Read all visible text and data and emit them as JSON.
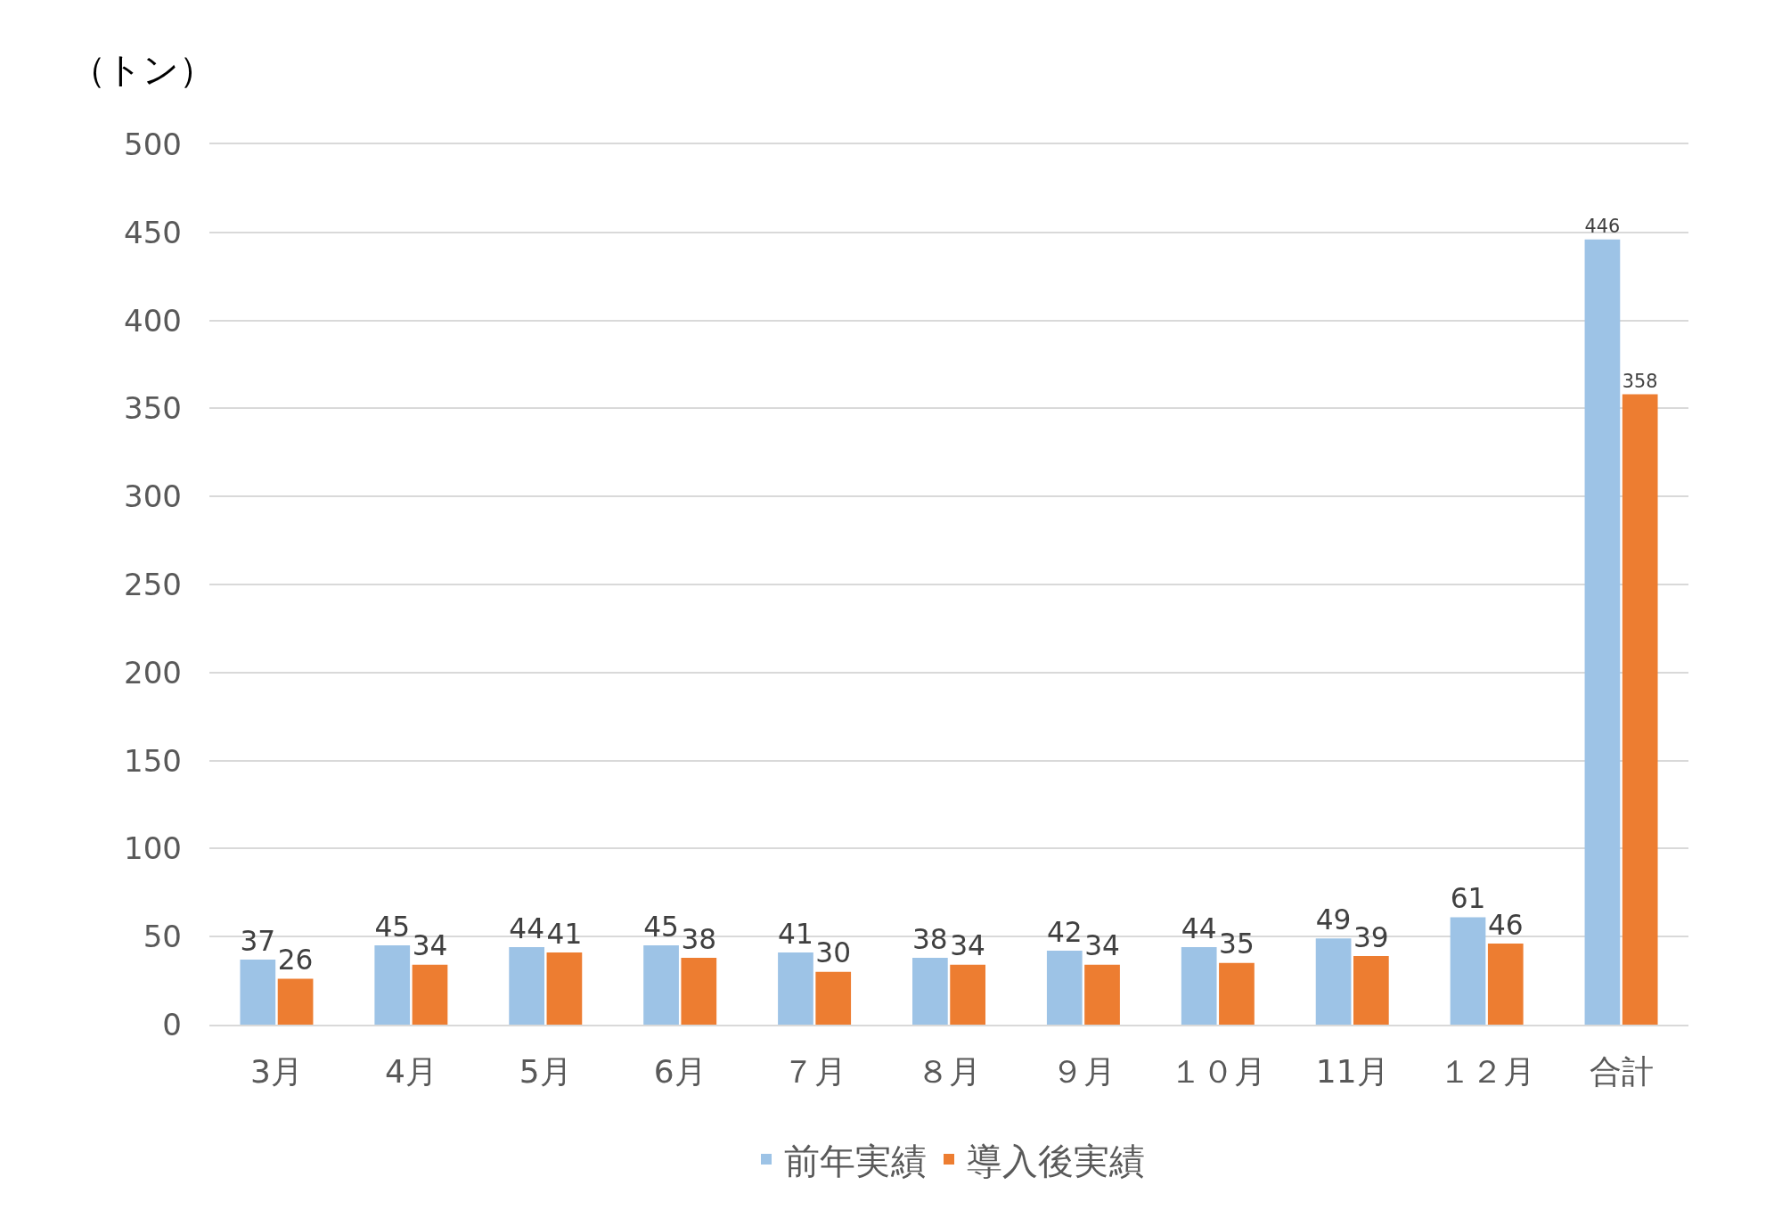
{
  "chart_data": {
    "type": "bar",
    "ylabel": "（トン）",
    "categories": [
      "3月",
      "4月",
      "5月",
      "6月",
      "７月",
      "８月",
      "９月",
      "１０月",
      "11月",
      "１２月",
      "合計"
    ],
    "series": [
      {
        "name": "前年実績",
        "color": "#9dc3e6",
        "values": [
          37,
          45,
          44,
          45,
          41,
          38,
          42,
          44,
          49,
          61,
          446
        ]
      },
      {
        "name": "導入後実績",
        "color": "#ed7d31",
        "values": [
          26,
          34,
          41,
          38,
          30,
          34,
          34,
          35,
          39,
          46,
          358
        ]
      }
    ],
    "ylim": [
      0,
      500
    ],
    "yticks": [
      0,
      50,
      100,
      150,
      200,
      250,
      300,
      350,
      400,
      450,
      500
    ],
    "grid": "y",
    "legend": "bottom",
    "data_labels": true
  }
}
